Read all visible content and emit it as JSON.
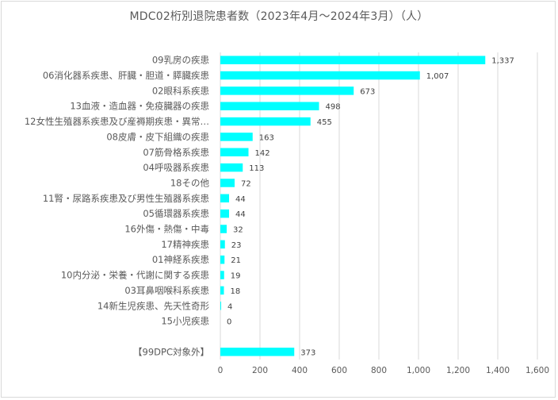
{
  "chart_data": {
    "type": "bar",
    "orientation": "horizontal",
    "title": "MDC02桁別退院患者数（2023年4月～2024年3月）（人）",
    "categories": [
      "09乳房の疾患",
      "06消化器系疾患、肝臓・胆道・膵臓疾患",
      "02眼科系疾患",
      "13血液・造血器・免疫臓器の疾患",
      "12女性生殖器系疾患及び産褥期疾患・異常…",
      "08皮膚・皮下組織の疾患",
      "07筋骨格系疾患",
      "04呼吸器系疾患",
      "18その他",
      "11腎・尿路系疾患及び男性生殖器系疾患",
      "05循環器系疾患",
      "16外傷・熱傷・中毒",
      "17精神疾患",
      "01神経系疾患",
      "10内分泌・栄養・代謝に関する疾患",
      "03耳鼻咽喉科系疾患",
      "14新生児疾患、先天性奇形",
      "15小児疾患",
      "",
      "【99DPC対象外】"
    ],
    "values": [
      1337,
      1007,
      673,
      498,
      455,
      163,
      142,
      113,
      72,
      44,
      44,
      32,
      23,
      21,
      19,
      18,
      4,
      0,
      null,
      373
    ],
    "value_labels": [
      "1,337",
      "1,007",
      "673",
      "498",
      "455",
      "163",
      "142",
      "113",
      "72",
      "44",
      "44",
      "32",
      "23",
      "21",
      "19",
      "18",
      "4",
      "0",
      "",
      "373"
    ],
    "xlim": [
      0,
      1600
    ],
    "ticks": [
      0,
      200,
      400,
      600,
      800,
      1000,
      1200,
      1400,
      1600
    ],
    "tick_labels": [
      "0",
      "200",
      "400",
      "600",
      "800",
      "1,000",
      "1,200",
      "1,400",
      "1,600"
    ],
    "grid": true,
    "legend": "none",
    "colors": {
      "bar": "#00FFFF",
      "grid": "#D9D9D9",
      "text": "#595959"
    }
  }
}
